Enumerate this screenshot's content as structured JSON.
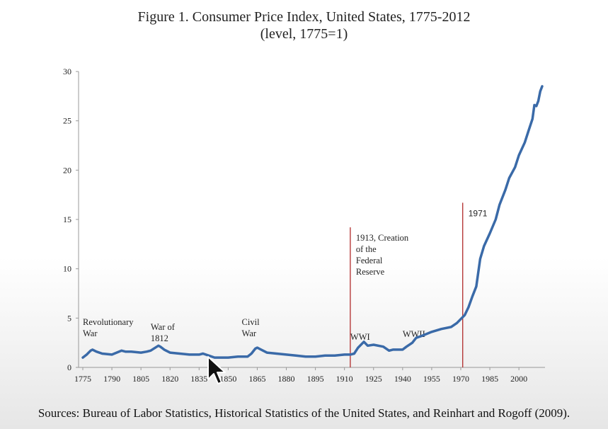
{
  "title_line1": "Figure 1. Consumer Price Index, United States, 1775-2012",
  "title_line2": "(level, 1775=1)",
  "sources": "Sources: Bureau of Labor Statistics, Historical Statistics of the United States, and Reinhart and Rogoff (2009).",
  "cursor_icon": "arrow-cursor-icon",
  "chart_data": {
    "type": "line",
    "title": "Figure 1. Consumer Price Index, United States, 1775-2012",
    "subtitle": "(level, 1775=1)",
    "xlim": [
      1775,
      2012
    ],
    "ylim": [
      0,
      30
    ],
    "y_ticks": [
      0,
      5,
      10,
      15,
      20,
      25,
      30
    ],
    "x_ticks": [
      1775,
      1790,
      1805,
      1820,
      1835,
      1850,
      1865,
      1880,
      1895,
      1910,
      1925,
      1940,
      1955,
      1970,
      1985,
      2000
    ],
    "x_tick_labels": [
      "1775",
      "1790",
      "1805",
      "1820",
      "1835",
      "1850",
      "1865",
      "1880",
      "1895",
      "1910",
      "1925",
      "1940",
      "1955",
      "1970",
      "1985",
      "2000"
    ],
    "line_color": "#3a6aa8",
    "marker_color": "#b02a2a",
    "series": [
      {
        "x": [
          1775,
          1777,
          1779,
          1780,
          1782,
          1785,
          1790,
          1795,
          1797,
          1800,
          1805,
          1808,
          1810,
          1814,
          1815,
          1817,
          1820,
          1825,
          1830,
          1835,
          1837,
          1840,
          1843,
          1845,
          1850,
          1855,
          1860,
          1862,
          1864,
          1865,
          1866,
          1868,
          1870,
          1875,
          1880,
          1885,
          1890,
          1895,
          1900,
          1905,
          1910,
          1913,
          1915,
          1917,
          1920,
          1922,
          1925,
          1930,
          1933,
          1935,
          1940,
          1942,
          1945,
          1947,
          1950,
          1955,
          1960,
          1965,
          1968,
          1970,
          1972,
          1974,
          1976,
          1978,
          1980,
          1982,
          1985,
          1988,
          1990,
          1993,
          1995,
          1998,
          2000,
          2003,
          2005,
          2007,
          2008,
          2009,
          2010,
          2011,
          2012
        ],
        "y": [
          1.0,
          1.3,
          1.7,
          1.8,
          1.6,
          1.4,
          1.3,
          1.7,
          1.6,
          1.6,
          1.5,
          1.6,
          1.7,
          2.2,
          2.1,
          1.8,
          1.5,
          1.4,
          1.3,
          1.3,
          1.4,
          1.2,
          1.0,
          1.0,
          1.0,
          1.1,
          1.1,
          1.4,
          1.9,
          2.0,
          1.9,
          1.7,
          1.5,
          1.4,
          1.3,
          1.2,
          1.1,
          1.1,
          1.2,
          1.2,
          1.3,
          1.3,
          1.4,
          2.0,
          2.6,
          2.2,
          2.3,
          2.1,
          1.7,
          1.8,
          1.8,
          2.1,
          2.5,
          3.0,
          3.2,
          3.6,
          3.9,
          4.1,
          4.5,
          4.9,
          5.3,
          6.1,
          7.2,
          8.2,
          11.0,
          12.3,
          13.6,
          15.0,
          16.5,
          18.0,
          19.2,
          20.3,
          21.5,
          22.8,
          24.0,
          25.2,
          26.6,
          26.5,
          27.0,
          28.0,
          28.5
        ]
      }
    ],
    "markers": [
      {
        "x": 1913,
        "label_lines": [
          "1913, Creation",
          "of the",
          "Federal",
          "Reserve"
        ]
      },
      {
        "x": 1971,
        "label_lines": [
          "1971"
        ]
      }
    ],
    "annotations": [
      {
        "lines": [
          "Revolutionary",
          "War"
        ],
        "x": 1775,
        "y": 4.3
      },
      {
        "lines": [
          "War of",
          "1812"
        ],
        "x": 1810,
        "y": 3.8
      },
      {
        "lines": [
          "Civil",
          "War"
        ],
        "x": 1857,
        "y": 4.3
      },
      {
        "lines": [
          "WWI"
        ],
        "x": 1913,
        "y": 2.8
      },
      {
        "lines": [
          "WWII"
        ],
        "x": 1940,
        "y": 3.1
      }
    ]
  }
}
